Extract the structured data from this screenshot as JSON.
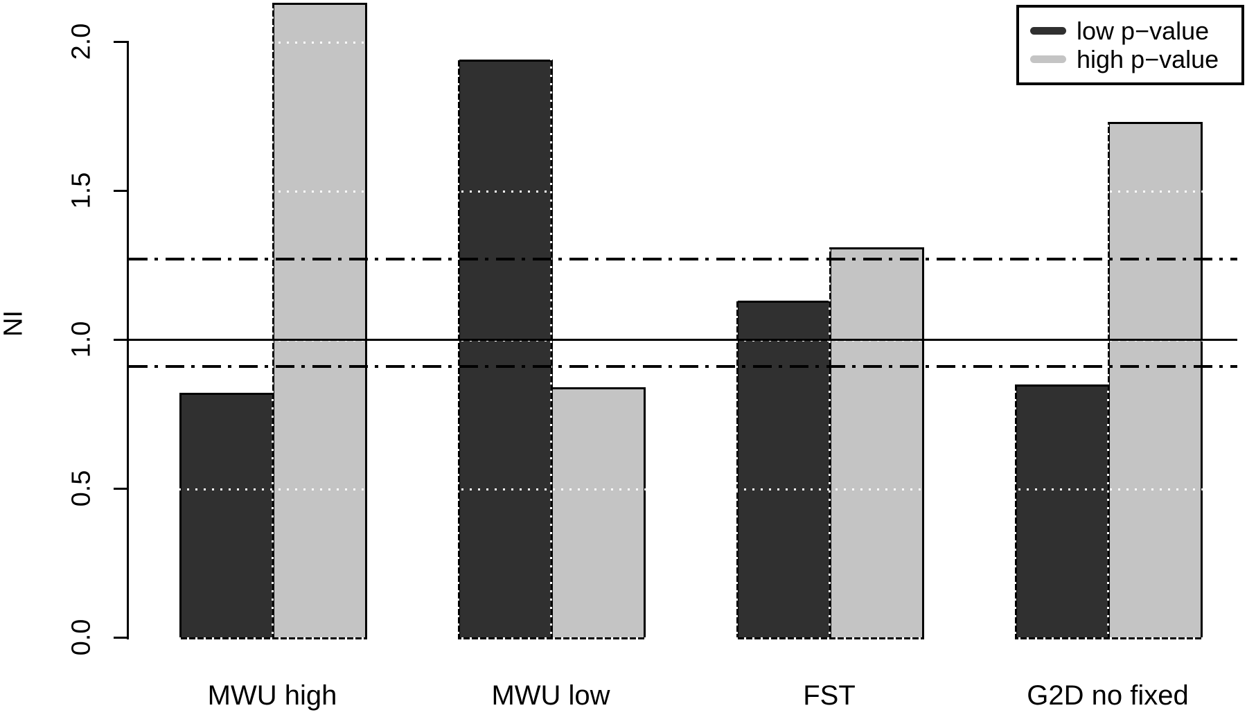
{
  "chart_data": {
    "type": "bar",
    "title": "",
    "xlabel": "",
    "ylabel": "NI",
    "categories": [
      "MWU high",
      "MWU low",
      "FST",
      "G2D no fixed"
    ],
    "series": [
      {
        "name": "low p−value",
        "color": "#303030",
        "values": [
          0.82,
          1.94,
          1.13,
          0.85
        ]
      },
      {
        "name": "high p−value",
        "color": "#c4c4c4",
        "values": [
          2.13,
          0.84,
          1.31,
          1.73
        ]
      }
    ],
    "y_ticks": [
      0.0,
      0.5,
      1.0,
      1.5,
      2.0
    ],
    "y_tick_labels": [
      "0.0",
      "0.5",
      "1.0",
      "1.5",
      "2.0"
    ],
    "ylim": [
      0,
      2.14
    ],
    "reference_lines": {
      "solid": [
        1.0
      ],
      "dashdot": [
        0.91,
        1.27
      ]
    },
    "grid": {
      "horizontal": "dotted at y ticks",
      "vertical": "dotted at bar-pair boundaries"
    },
    "legend_position": "top-right",
    "colors": {
      "grid_dot_on_white": "#9a9a9a",
      "grid_dot_on_bar": "#ffffff",
      "bar_border": "#000000"
    }
  },
  "legend": {
    "items": [
      {
        "label": "low p−value",
        "color": "#303030"
      },
      {
        "label": "high p−value",
        "color": "#c4c4c4"
      }
    ]
  }
}
